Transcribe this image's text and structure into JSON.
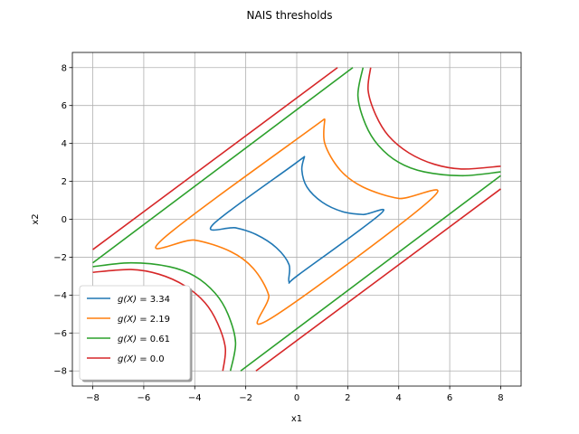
{
  "chart_data": {
    "type": "line",
    "title": "NAIS thresholds",
    "xlabel": "x1",
    "ylabel": "x2",
    "xlim": [
      -8.8,
      8.8
    ],
    "ylim": [
      -8.8,
      8.8
    ],
    "xticks": [
      -8,
      -6,
      -4,
      -2,
      0,
      2,
      4,
      6,
      8
    ],
    "yticks": [
      -8,
      -6,
      -4,
      -2,
      0,
      2,
      4,
      6,
      8
    ],
    "grid": true,
    "legend_position": "lower-left",
    "series": [
      {
        "name": "g(X) = 3.34",
        "legend_prefix": "g(X)",
        "legend_value": "= 3.34",
        "color": "#1f77b4",
        "threshold": 3.34,
        "segments": [
          [
            [
              0.3,
              3.3
            ],
            [
              0.2,
              2.6
            ],
            [
              0.4,
              1.7
            ],
            [
              1.0,
              0.9
            ],
            [
              1.8,
              0.4
            ],
            [
              2.6,
              0.25
            ],
            [
              3.3,
              0.3
            ],
            [
              0.1,
              -2.9
            ],
            [
              -0.3,
              -3.3
            ],
            [
              -0.3,
              -2.4
            ],
            [
              -0.8,
              -1.5
            ],
            [
              -1.6,
              -0.8
            ],
            [
              -2.4,
              -0.45
            ],
            [
              -3.3,
              -0.3
            ],
            [
              -0.1,
              2.9
            ],
            [
              0.3,
              3.3
            ]
          ]
        ]
      },
      {
        "name": "g(X) = 2.19",
        "legend_prefix": "g(X)",
        "legend_value": "= 2.19",
        "color": "#ff7f0e",
        "threshold": 2.19,
        "segments": [
          [
            [
              1.1,
              5.3
            ],
            [
              1.1,
              4.0
            ],
            [
              1.7,
              2.6
            ],
            [
              2.6,
              1.7
            ],
            [
              4.0,
              1.1
            ],
            [
              5.3,
              1.1
            ],
            [
              -1.1,
              -5.3
            ],
            [
              -1.1,
              -4.0
            ],
            [
              -1.7,
              -2.6
            ],
            [
              -2.6,
              -1.7
            ],
            [
              -4.0,
              -1.1
            ],
            [
              -5.3,
              -1.1
            ],
            [
              1.1,
              5.3
            ]
          ]
        ]
      },
      {
        "name": "g(X) = 0.61",
        "legend_prefix": "g(X)",
        "legend_value": "= 0.61",
        "color": "#2ca02c",
        "threshold": 0.61,
        "segments": [
          [
            [
              -8.0,
              -2.3
            ],
            [
              2.2,
              8.0
            ]
          ],
          [
            [
              -2.2,
              -8.0
            ],
            [
              8.0,
              2.3
            ]
          ],
          [
            [
              2.6,
              8.0
            ],
            [
              2.4,
              6.5
            ],
            [
              2.7,
              5.0
            ],
            [
              3.2,
              3.9
            ],
            [
              4.0,
              3.0
            ],
            [
              5.0,
              2.5
            ],
            [
              6.5,
              2.3
            ],
            [
              8.0,
              2.5
            ]
          ],
          [
            [
              -2.6,
              -8.0
            ],
            [
              -2.4,
              -6.5
            ],
            [
              -2.7,
              -5.0
            ],
            [
              -3.2,
              -3.9
            ],
            [
              -4.0,
              -3.0
            ],
            [
              -5.0,
              -2.5
            ],
            [
              -6.5,
              -2.3
            ],
            [
              -8.0,
              -2.5
            ]
          ]
        ]
      },
      {
        "name": "g(X) = 0.0",
        "legend_prefix": "g(X)",
        "legend_value": "= 0.0",
        "color": "#d62728",
        "threshold": 0.0,
        "segments": [
          [
            [
              -8.0,
              -1.6
            ],
            [
              1.6,
              8.0
            ]
          ],
          [
            [
              -1.6,
              -8.0
            ],
            [
              8.0,
              1.6
            ]
          ],
          [
            [
              2.9,
              8.0
            ],
            [
              2.8,
              6.8
            ],
            [
              3.1,
              5.5
            ],
            [
              3.6,
              4.4
            ],
            [
              4.4,
              3.5
            ],
            [
              5.4,
              2.9
            ],
            [
              6.5,
              2.65
            ],
            [
              8.0,
              2.8
            ]
          ],
          [
            [
              -2.9,
              -8.0
            ],
            [
              -2.8,
              -6.8
            ],
            [
              -3.1,
              -5.5
            ],
            [
              -3.6,
              -4.4
            ],
            [
              -4.4,
              -3.5
            ],
            [
              -5.4,
              -2.9
            ],
            [
              -6.5,
              -2.65
            ],
            [
              -8.0,
              -2.8
            ]
          ]
        ]
      }
    ]
  }
}
